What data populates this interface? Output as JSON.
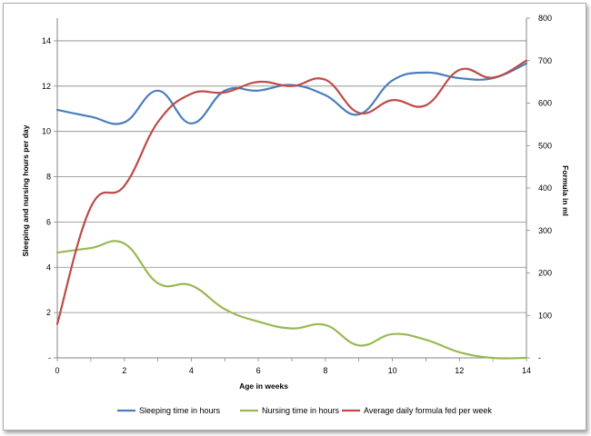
{
  "chart_data": {
    "type": "line",
    "xlabel": "Age in weeks",
    "ylabel_left": "Sleeping and nursing hours per day",
    "ylabel_right": "Formula in ml",
    "xlim": [
      0,
      14
    ],
    "ylim_left": [
      0,
      15
    ],
    "ylim_right": [
      0,
      800
    ],
    "x_ticks": [
      "0",
      "2",
      "4",
      "6",
      "8",
      "10",
      "12",
      "14"
    ],
    "y_left_ticks": [
      "-",
      "2",
      "4",
      "6",
      "8",
      "10",
      "12",
      "14"
    ],
    "y_right_ticks": [
      "-",
      "100",
      "200",
      "300",
      "400",
      "500",
      "600",
      "700",
      "800"
    ],
    "grid": "horizontal",
    "legend_position": "bottom",
    "series": [
      {
        "name": "Sleeping time in hours",
        "axis": "left",
        "color": "#4a7ebb",
        "x": [
          0,
          1,
          2,
          3,
          4,
          5,
          6,
          7,
          8,
          9,
          10,
          11,
          12,
          13,
          14
        ],
        "values": [
          10.95,
          10.65,
          10.4,
          11.8,
          10.35,
          11.8,
          11.8,
          12.05,
          11.6,
          10.75,
          12.25,
          12.6,
          12.35,
          12.35,
          13.0
        ]
      },
      {
        "name": "Nursing time in hours",
        "axis": "left",
        "color": "#98b954",
        "x": [
          0,
          1,
          2,
          3,
          4,
          5,
          6,
          7,
          8,
          9,
          10,
          11,
          12,
          13,
          14
        ],
        "values": [
          4.65,
          4.85,
          5.05,
          3.3,
          3.2,
          2.15,
          1.6,
          1.3,
          1.45,
          0.55,
          1.05,
          0.8,
          0.25,
          0.0,
          0.0
        ]
      },
      {
        "name": "Average daily formula fed per week",
        "axis": "right",
        "color": "#be4b48",
        "x": [
          0,
          1,
          2,
          3,
          4,
          5,
          6,
          7,
          8,
          9,
          10,
          11,
          12,
          13,
          14
        ],
        "values": [
          80,
          355,
          405,
          555,
          622,
          625,
          650,
          640,
          655,
          577,
          607,
          595,
          678,
          660,
          700
        ]
      }
    ]
  }
}
